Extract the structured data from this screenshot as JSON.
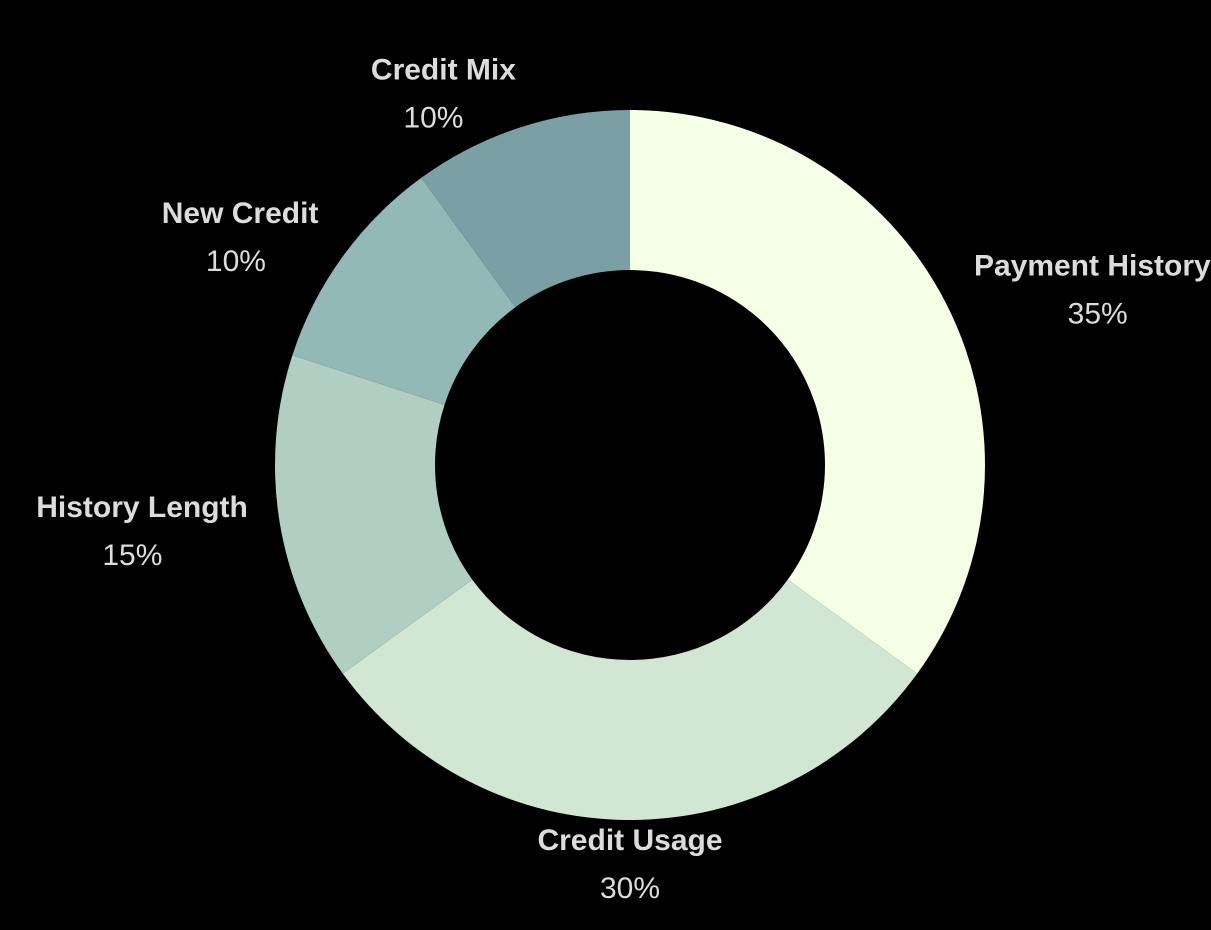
{
  "chart_data": {
    "type": "pie",
    "variant": "donut",
    "title": "",
    "legend": "none",
    "slices": [
      {
        "label": "Payment History",
        "value": 35,
        "value_label": "35%",
        "color": "#f4ffe6"
      },
      {
        "label": "Credit Usage",
        "value": 30,
        "value_label": "30%",
        "color": "#d2e6d4"
      },
      {
        "label": "History Length",
        "value": 15,
        "value_label": "15%",
        "color": "#b1cec2"
      },
      {
        "label": "New Credit",
        "value": 10,
        "value_label": "10%",
        "color": "#93b9b6"
      },
      {
        "label": "Credit Mix",
        "value": 10,
        "value_label": "10%",
        "color": "#7a9fa4"
      }
    ],
    "background": "#000000",
    "label_color": "#dcdcdc"
  }
}
